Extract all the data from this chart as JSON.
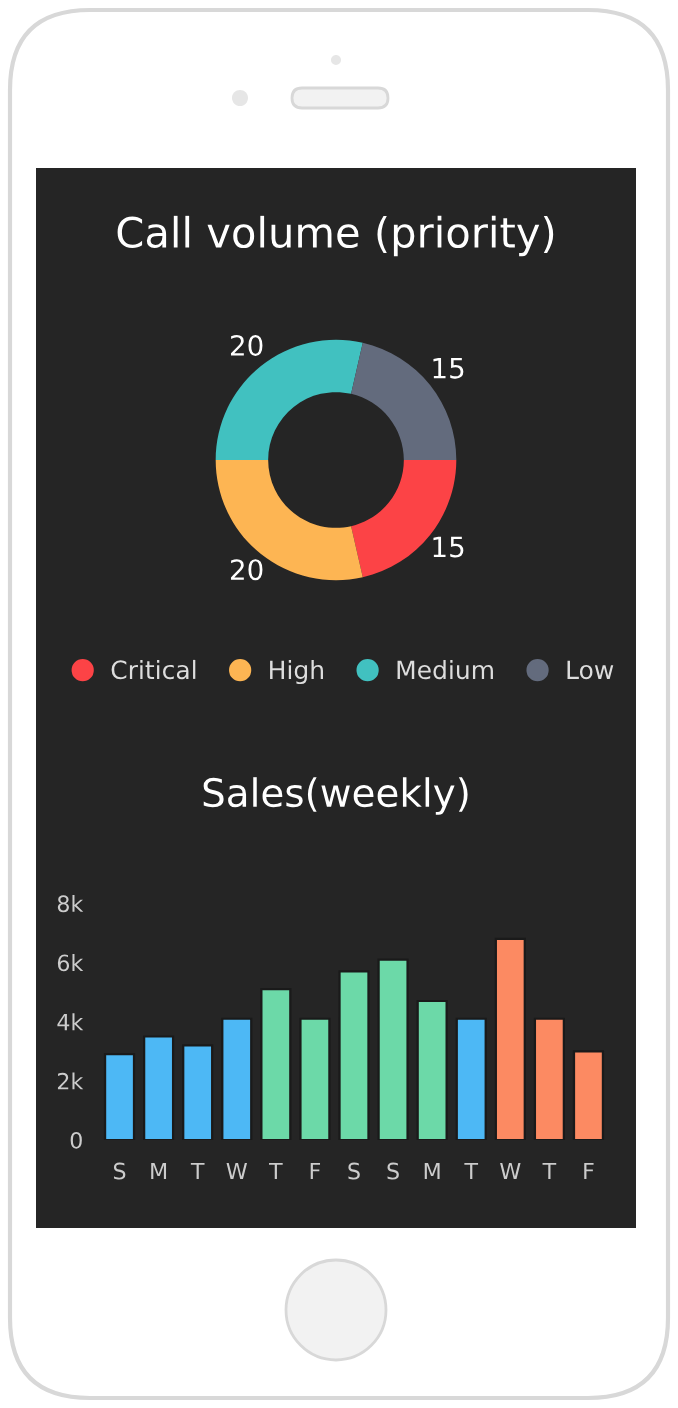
{
  "chart_data": [
    {
      "type": "donut",
      "title": "Call volume (priority)",
      "categories": [
        "Critical",
        "High",
        "Medium",
        "Low"
      ],
      "values": [
        15,
        20,
        20,
        15
      ],
      "colors": [
        "#fc4346",
        "#fdb553",
        "#41c1c0",
        "#636b7d"
      ],
      "data_labels": true,
      "legend": "bottom"
    },
    {
      "type": "bar",
      "title": "Sales(weekly)",
      "categories": [
        "S",
        "M",
        "T",
        "W",
        "T",
        "F",
        "S",
        "S",
        "M",
        "T",
        "W",
        "T",
        "F"
      ],
      "values": [
        2900,
        3500,
        3200,
        4100,
        5100,
        4100,
        5700,
        6100,
        4700,
        4100,
        6800,
        4100,
        3000
      ],
      "colors": [
        "#4db8f5",
        "#4db8f5",
        "#4db8f5",
        "#4db8f5",
        "#6cd9a8",
        "#6cd9a8",
        "#6cd9a8",
        "#6cd9a8",
        "#6cd9a8",
        "#4db8f5",
        "#fc8a62",
        "#fc8a62",
        "#fc8a62"
      ],
      "ylim": [
        0,
        8000
      ],
      "yticks": [
        {
          "value": 0,
          "label": "0"
        },
        {
          "value": 2000,
          "label": "2k"
        },
        {
          "value": 4000,
          "label": "4k"
        },
        {
          "value": 6000,
          "label": "6k"
        },
        {
          "value": 8000,
          "label": "8k"
        }
      ],
      "grid": false
    }
  ]
}
